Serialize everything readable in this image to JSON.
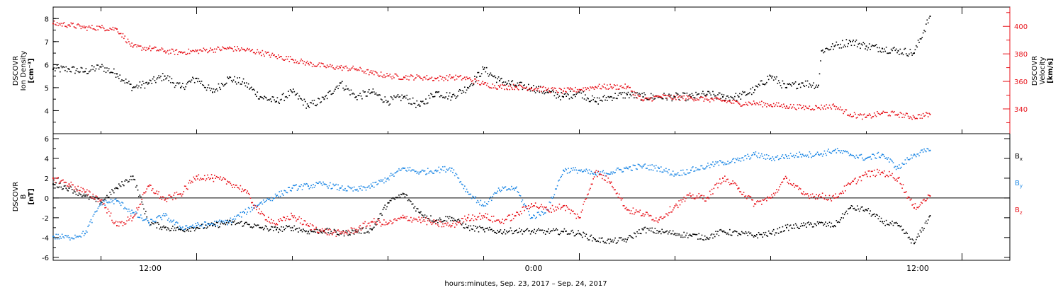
{
  "figure": {
    "xlabel": "hours:minutes, Sep. 23, 2017 – Sep. 24, 2017",
    "x_tick_labels": [
      "12:00",
      "0:00",
      "12:00"
    ]
  },
  "chart_data": [
    {
      "type": "scatter",
      "panel": "plasma",
      "x_range_hours_from_sep23_0000": [
        7.5,
        37.5
      ],
      "ylabel_left": [
        "DSCOVR",
        "Ion Density",
        "[cm⁻³]"
      ],
      "ylabel_right": [
        "DSCOVR",
        "Velocity",
        "[km/s]"
      ],
      "ylim_left": [
        3.0,
        8.5
      ],
      "ylim_right": [
        322,
        414
      ],
      "yticks_left": [
        "4",
        "5",
        "6",
        "7",
        "8"
      ],
      "yticks_right": [
        "340",
        "360",
        "380",
        "400"
      ],
      "colors": {
        "density": "#000000",
        "velocity": "#e8141c"
      },
      "series": [
        {
          "name": "Ion Density",
          "axis": "left",
          "x_hours": [
            7.5,
            8.0,
            8.5,
            9.0,
            9.5,
            10.0,
            10.5,
            11.0,
            11.5,
            12.0,
            12.5,
            13.0,
            13.5,
            14.0,
            14.5,
            15.0,
            15.5,
            16.0,
            16.5,
            17.0,
            17.5,
            18.0,
            18.5,
            19.0,
            19.5,
            20.0,
            20.5,
            21.0,
            21.5,
            22.0,
            22.5,
            23.0,
            23.5,
            24.0,
            24.5,
            25.0,
            25.5,
            26.0,
            26.5,
            27.0,
            27.5,
            28.0,
            28.5,
            29.0,
            29.5,
            30.0,
            30.5,
            31.0,
            31.5,
            31.6,
            32.0,
            32.5,
            33.0,
            33.5,
            34.0,
            34.5,
            35.0
          ],
          "values": [
            5.8,
            5.8,
            5.7,
            5.9,
            5.6,
            5.0,
            5.2,
            5.5,
            5.0,
            5.4,
            4.8,
            5.4,
            5.2,
            4.6,
            4.4,
            4.8,
            4.2,
            4.5,
            5.2,
            4.6,
            4.8,
            4.4,
            4.6,
            4.2,
            4.8,
            4.6,
            5.0,
            5.8,
            5.3,
            5.1,
            5.0,
            4.8,
            4.6,
            4.8,
            4.4,
            4.6,
            4.7,
            4.6,
            4.6,
            4.6,
            4.6,
            4.7,
            4.6,
            4.6,
            4.9,
            5.5,
            5.0,
            5.2,
            5.1,
            6.6,
            6.8,
            7.0,
            6.8,
            6.7,
            6.6,
            6.5,
            8.1
          ]
        },
        {
          "name": "Velocity",
          "axis": "right",
          "x_hours": [
            7.5,
            8.0,
            8.5,
            9.0,
            9.5,
            10.0,
            10.5,
            11.0,
            11.5,
            12.0,
            12.5,
            13.0,
            13.5,
            14.0,
            14.5,
            15.0,
            15.5,
            16.0,
            16.5,
            17.0,
            17.5,
            18.0,
            18.5,
            19.0,
            19.5,
            20.0,
            20.5,
            21.0,
            21.5,
            22.0,
            22.5,
            23.0,
            23.5,
            24.0,
            24.5,
            25.0,
            25.5,
            26.0,
            26.5,
            27.0,
            27.5,
            28.0,
            28.5,
            29.0,
            29.5,
            30.0,
            30.5,
            31.0,
            31.5,
            32.0,
            32.5,
            33.0,
            33.5,
            34.0,
            34.5,
            35.0
          ],
          "values": [
            402,
            401,
            399,
            399,
            398,
            385,
            384,
            382,
            381,
            382,
            383,
            384,
            383,
            381,
            378,
            376,
            373,
            371,
            370,
            369,
            366,
            364,
            363,
            363,
            362,
            363,
            362,
            358,
            356,
            356,
            355,
            354,
            353,
            354,
            356,
            356,
            356,
            346,
            349,
            348,
            348,
            347,
            346,
            344,
            344,
            343,
            342,
            341,
            341,
            342,
            336,
            334,
            337,
            336,
            334,
            336
          ]
        }
      ]
    },
    {
      "type": "scatter",
      "panel": "magnetic-field",
      "x_range_hours_from_sep23_0000": [
        7.5,
        37.5
      ],
      "ylabel_left": [
        "DSCOVR",
        "B",
        "[nT]"
      ],
      "ylim": [
        -6.3,
        6.5
      ],
      "yticks": [
        "-6",
        "-4",
        "-2",
        "0",
        "2",
        "4",
        "6"
      ],
      "zero_line": true,
      "colors": {
        "Bx": "#000000",
        "By": "#1e88e5",
        "Bz": "#e8141c"
      },
      "series": [
        {
          "name": "B",
          "sub": "x",
          "x_hours": [
            7.5,
            8.0,
            8.5,
            9.0,
            9.5,
            10.0,
            10.5,
            11.0,
            11.5,
            12.0,
            12.5,
            13.0,
            13.5,
            14.0,
            14.5,
            15.0,
            15.5,
            16.0,
            16.5,
            17.0,
            17.5,
            18.0,
            18.5,
            19.0,
            19.5,
            20.0,
            20.5,
            21.0,
            21.5,
            22.0,
            22.5,
            23.0,
            23.5,
            24.0,
            24.5,
            25.0,
            25.5,
            26.0,
            26.5,
            27.0,
            27.5,
            28.0,
            28.5,
            29.0,
            29.5,
            30.0,
            30.5,
            31.0,
            31.5,
            32.0,
            32.5,
            33.0,
            33.5,
            34.0,
            34.5,
            35.0
          ],
          "values": [
            1.4,
            1.0,
            0.2,
            -0.4,
            1.0,
            2.2,
            -2.5,
            -3.0,
            -3.2,
            -3.0,
            -2.8,
            -2.5,
            -2.6,
            -3.0,
            -3.2,
            -3.0,
            -3.4,
            -3.3,
            -3.6,
            -3.4,
            -3.2,
            -0.5,
            0.4,
            -1.5,
            -2.3,
            -2.0,
            -3.0,
            -3.2,
            -3.4,
            -3.3,
            -3.4,
            -3.4,
            -3.4,
            -3.6,
            -4.2,
            -4.4,
            -4.2,
            -3.2,
            -3.4,
            -3.6,
            -3.8,
            -4.0,
            -3.4,
            -3.6,
            -3.8,
            -3.6,
            -3.0,
            -2.8,
            -2.6,
            -2.8,
            -1.0,
            -1.2,
            -2.4,
            -2.8,
            -4.6,
            -1.8
          ]
        },
        {
          "name": "B",
          "sub": "y",
          "x_hours": [
            7.5,
            8.0,
            8.5,
            9.0,
            9.5,
            10.0,
            10.5,
            11.0,
            11.5,
            12.0,
            12.5,
            13.0,
            13.5,
            14.0,
            14.5,
            15.0,
            15.5,
            16.0,
            16.5,
            17.0,
            17.5,
            18.0,
            18.5,
            19.0,
            19.5,
            20.0,
            20.5,
            21.0,
            21.5,
            22.0,
            22.5,
            23.0,
            23.5,
            24.0,
            24.5,
            25.0,
            25.5,
            26.0,
            26.5,
            27.0,
            27.5,
            28.0,
            28.5,
            29.0,
            29.5,
            30.0,
            30.5,
            31.0,
            31.5,
            32.0,
            32.5,
            33.0,
            33.5,
            34.0,
            34.5,
            35.0
          ],
          "values": [
            -3.9,
            -4.0,
            -3.6,
            -0.5,
            -0.3,
            -1.5,
            -2.5,
            -1.8,
            -3.0,
            -2.8,
            -2.6,
            -2.4,
            -1.5,
            -0.5,
            0.2,
            1.0,
            1.2,
            1.4,
            1.0,
            0.8,
            1.2,
            2.0,
            3.0,
            2.6,
            2.8,
            3.0,
            0.6,
            -0.8,
            0.8,
            1.0,
            -2.0,
            -1.2,
            2.8,
            2.8,
            2.4,
            2.6,
            3.0,
            3.2,
            3.0,
            2.4,
            2.8,
            3.2,
            3.6,
            3.8,
            4.4,
            4.0,
            4.2,
            4.4,
            4.4,
            4.8,
            4.4,
            4.0,
            4.4,
            3.0,
            4.4,
            4.8
          ]
        },
        {
          "name": "B",
          "sub": "z",
          "x_hours": [
            7.5,
            8.0,
            8.5,
            9.0,
            9.5,
            10.0,
            10.5,
            11.0,
            11.5,
            12.0,
            12.5,
            13.0,
            13.5,
            14.0,
            14.5,
            15.0,
            15.5,
            16.0,
            16.5,
            17.0,
            17.5,
            18.0,
            18.5,
            19.0,
            19.5,
            20.0,
            20.5,
            21.0,
            21.5,
            22.0,
            22.5,
            23.0,
            23.5,
            24.0,
            24.5,
            25.0,
            25.5,
            26.0,
            26.5,
            27.0,
            27.5,
            28.0,
            28.5,
            29.0,
            29.5,
            30.0,
            30.5,
            31.0,
            31.5,
            32.0,
            32.5,
            33.0,
            33.5,
            34.0,
            34.5,
            35.0
          ],
          "values": [
            2.0,
            1.4,
            0.6,
            -0.2,
            -2.8,
            -2.0,
            1.2,
            -0.2,
            0.4,
            2.2,
            2.0,
            1.6,
            0.8,
            -1.6,
            -2.6,
            -1.8,
            -2.8,
            -3.4,
            -3.6,
            -3.2,
            -2.4,
            -2.6,
            -2.0,
            -2.2,
            -2.6,
            -2.8,
            -2.0,
            -1.8,
            -2.4,
            -1.8,
            -0.6,
            -1.2,
            -0.8,
            -2.0,
            2.6,
            1.6,
            -1.2,
            -1.6,
            -2.2,
            -0.8,
            0.2,
            0.0,
            2.0,
            1.0,
            -0.6,
            0.0,
            2.0,
            0.4,
            0.2,
            0.0,
            1.4,
            2.4,
            2.6,
            2.0,
            -1.0,
            0.2
          ]
        }
      ]
    }
  ]
}
